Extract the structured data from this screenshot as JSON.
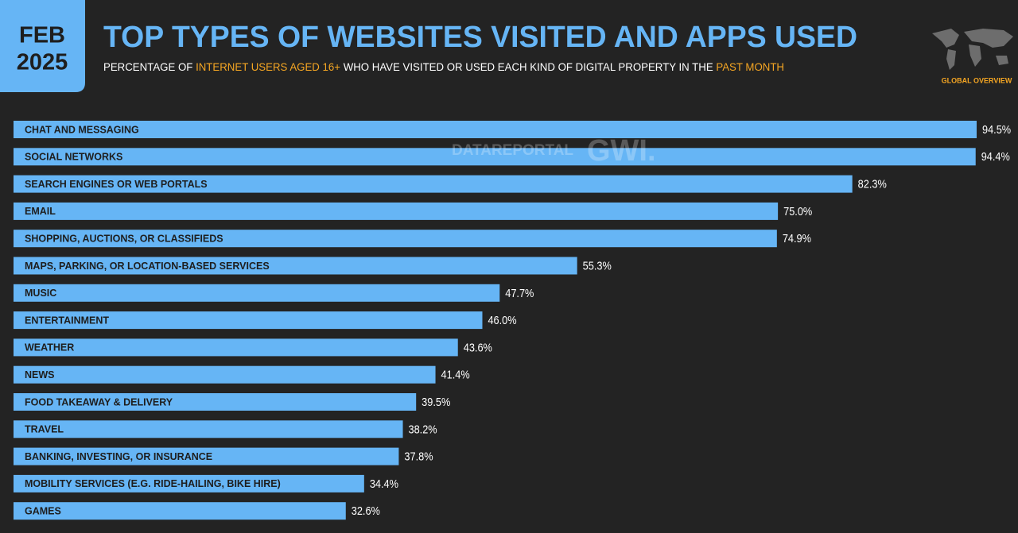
{
  "chart_data": {
    "type": "bar",
    "orientation": "horizontal",
    "badge": [
      "FEB",
      "2025"
    ],
    "title": "TOP TYPES OF WEBSITES VISITED AND APPS USED",
    "subtitle": [
      {
        "text": "PERCENTAGE OF ",
        "highlight": false
      },
      {
        "text": "INTERNET USERS AGED 16+",
        "highlight": true
      },
      {
        "text": " WHO HAVE VISITED OR USED EACH KIND OF DIGITAL PROPERTY IN THE ",
        "highlight": false
      },
      {
        "text": "PAST MONTH",
        "highlight": true
      }
    ],
    "section": "GLOBAL OVERVIEW",
    "watermarks": [
      "DATAREPORTAL",
      "GWI."
    ],
    "categories": [
      "CHAT AND MESSAGING",
      "SOCIAL NETWORKS",
      "SEARCH ENGINES OR WEB PORTALS",
      "EMAIL",
      "SHOPPING, AUCTIONS, OR CLASSIFIEDS",
      "MAPS, PARKING, OR LOCATION-BASED SERVICES",
      "MUSIC",
      "ENTERTAINMENT",
      "WEATHER",
      "NEWS",
      "FOOD TAKEAWAY & DELIVERY",
      "TRAVEL",
      "BANKING, INVESTING, OR INSURANCE",
      "MOBILITY SERVICES (E.G. RIDE-HAILING, BIKE HIRE)",
      "GAMES"
    ],
    "values": [
      94.5,
      94.4,
      82.3,
      75.0,
      74.9,
      55.3,
      47.7,
      46.0,
      43.6,
      41.4,
      39.5,
      38.2,
      37.8,
      34.4,
      32.6
    ],
    "value_labels": [
      "94.5%",
      "94.4%",
      "82.3%",
      "75.0%",
      "74.9%",
      "55.3%",
      "47.7%",
      "46.0%",
      "43.6%",
      "41.4%",
      "39.5%",
      "38.2%",
      "37.8%",
      "34.4%",
      "32.6%"
    ],
    "color": "#66b5f5",
    "highlight_color": "#f5a623",
    "xlim": [
      0,
      100
    ]
  }
}
